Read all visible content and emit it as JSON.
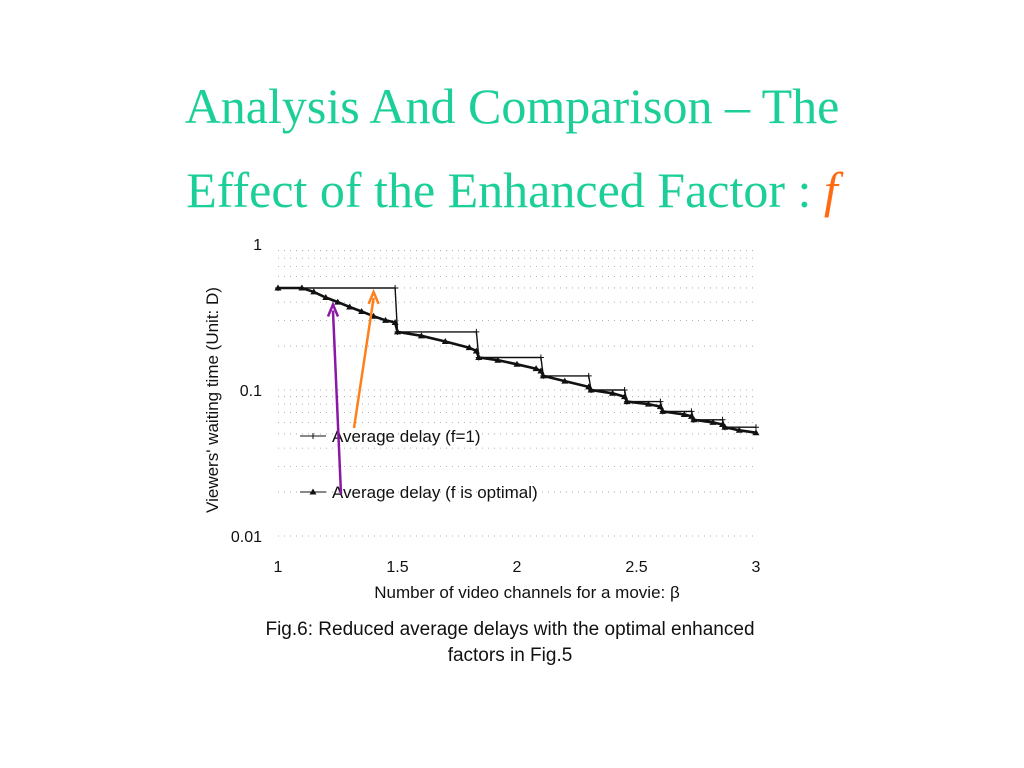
{
  "slide": {
    "title_line1": "Analysis And Comparison – The",
    "title_line2": "Effect of the Enhanced Factor : ",
    "title_accent": "f"
  },
  "colors": {
    "title": "#1ccf98",
    "accent": "#ff6a13",
    "arrow_f1": "#ff7f1a",
    "arrow_optimal": "#8b17a8"
  },
  "caption": {
    "line1": "Fig.6: Reduced average delays with the optimal enhanced",
    "line2": "factors in Fig.5"
  },
  "chart_data": {
    "type": "line",
    "xlabel": "Number of video channels for a movie: β",
    "ylabel": "Viewers' waiting time (Unit: D)",
    "x_ticks": [
      "1",
      "1.5",
      "2",
      "2.5",
      "3"
    ],
    "y_ticks": [
      "1",
      "0.1",
      "0.01"
    ],
    "xlim": [
      1,
      3
    ],
    "ylim": [
      0.01,
      1
    ],
    "y_scale": "log",
    "grid": true,
    "legend_placement": "bottom-left",
    "series": [
      {
        "name": "Average delay (f=1)",
        "marker": "plus",
        "x": [
          1.0,
          1.49,
          1.5,
          1.83,
          1.84,
          2.1,
          2.11,
          2.3,
          2.31,
          2.45,
          2.46,
          2.6,
          2.61,
          2.73,
          2.74,
          2.86,
          2.87,
          3.0
        ],
        "y": [
          0.5,
          0.5,
          0.25,
          0.25,
          0.167,
          0.167,
          0.125,
          0.125,
          0.1,
          0.1,
          0.0833,
          0.0833,
          0.0714,
          0.0714,
          0.0625,
          0.0625,
          0.0556,
          0.0556
        ]
      },
      {
        "name": "Average delay (f is optimal)",
        "marker": "triangle",
        "x": [
          1.0,
          1.1,
          1.15,
          1.2,
          1.25,
          1.3,
          1.35,
          1.4,
          1.45,
          1.49,
          1.5,
          1.6,
          1.7,
          1.8,
          1.83,
          1.84,
          1.92,
          2.0,
          2.08,
          2.1,
          2.11,
          2.2,
          2.3,
          2.31,
          2.4,
          2.45,
          2.46,
          2.55,
          2.6,
          2.61,
          2.7,
          2.73,
          2.74,
          2.82,
          2.86,
          2.87,
          2.93,
          3.0
        ],
        "y": [
          0.5,
          0.5,
          0.47,
          0.43,
          0.4,
          0.37,
          0.345,
          0.32,
          0.3,
          0.29,
          0.25,
          0.235,
          0.215,
          0.195,
          0.185,
          0.167,
          0.16,
          0.15,
          0.14,
          0.135,
          0.125,
          0.115,
          0.105,
          0.1,
          0.095,
          0.09,
          0.0833,
          0.08,
          0.077,
          0.0714,
          0.068,
          0.066,
          0.0625,
          0.06,
          0.058,
          0.0556,
          0.053,
          0.051
        ]
      }
    ]
  }
}
